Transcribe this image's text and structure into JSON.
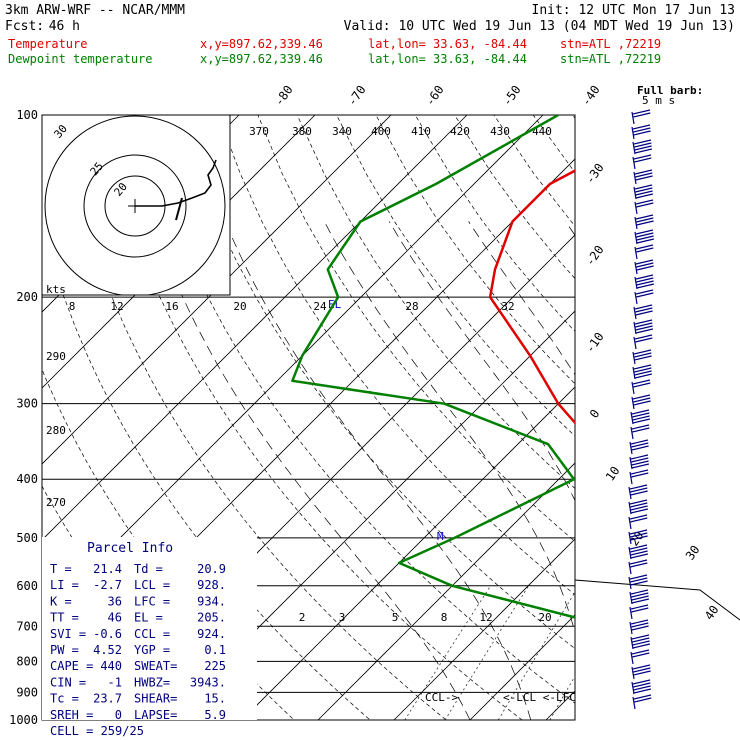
{
  "header": {
    "model": "3km ARW-WRF -- NCAR/MMM",
    "init": "Init: 12 UTC Mon 17 Jun 13",
    "fcst_label": "Fcst:",
    "fcst_value": "46 h",
    "valid": "Valid: 10 UTC Wed 19 Jun 13 (04 MDT Wed 19 Jun 13)",
    "temp_label": "Temperature",
    "dew_label": "Dewpoint temperature",
    "xy": "x,y=897.62,339.46",
    "latlon": "lat,lon= 33.63, -84.44",
    "stn": "stn=ATL ,72219"
  },
  "colors": {
    "temperature": "#e00000",
    "dewpoint": "#008000",
    "wind": "#000080",
    "text": "#000000",
    "grid": "#000000",
    "mixing": "#555555",
    "el_marker": "#0000cc"
  },
  "chart_data": {
    "type": "line",
    "title": "Skew-T log-P sounding",
    "y_axis": "pressure",
    "pressure_ticks": [
      "100",
      "200",
      "300",
      "400",
      "500",
      "600",
      "700",
      "800",
      "900",
      "1000"
    ],
    "isotherm_labels": [
      "-80",
      "-70",
      "-60",
      "-50",
      "-40",
      "-30",
      "-20",
      "-10",
      "0",
      "10",
      "20",
      "30",
      "40"
    ],
    "theta_e_labels": [
      "370",
      "380",
      "340",
      "400",
      "410",
      "420",
      "430",
      "440"
    ],
    "side_theta_labels": [
      "290",
      "280",
      "270"
    ],
    "mixing_ratio_labels": [
      "2",
      "3",
      "5",
      "8",
      "12",
      "20"
    ],
    "hodograph": {
      "ring_labels": [
        "8",
        "12",
        "16",
        "20",
        "24",
        "28",
        "32"
      ],
      "unit": "kts",
      "circle_labels": [
        "20",
        "25",
        "30"
      ]
    },
    "el_label": "EL",
    "barb_label": "Full barb:",
    "barb_unit": "5 m s",
    "ccl_label": "CCL->",
    "lcl_lfc_label": "<-LCL <-LFC",
    "series": [
      {
        "name": "Temperature",
        "points": [
          [
            100,
            -52
          ],
          [
            130,
            -60
          ],
          [
            150,
            -60
          ],
          [
            180,
            -56
          ],
          [
            200,
            -53
          ],
          [
            250,
            -40
          ],
          [
            300,
            -30
          ],
          [
            350,
            -20
          ],
          [
            400,
            -11
          ],
          [
            500,
            -4
          ],
          [
            600,
            5
          ],
          [
            700,
            10
          ],
          [
            780,
            15
          ],
          [
            850,
            18
          ],
          [
            900,
            20
          ],
          [
            950,
            21.4
          ]
        ]
      },
      {
        "name": "Dewpoint temperature",
        "points": [
          [
            100,
            -68
          ],
          [
            130,
            -75
          ],
          [
            150,
            -80
          ],
          [
            180,
            -78
          ],
          [
            200,
            -73
          ],
          [
            250,
            -70
          ],
          [
            275,
            -68
          ],
          [
            300,
            -45
          ],
          [
            350,
            -26
          ],
          [
            400,
            -18
          ],
          [
            500,
            -26
          ],
          [
            550,
            -30
          ],
          [
            600,
            -20
          ],
          [
            700,
            6
          ],
          [
            800,
            11
          ],
          [
            880,
            17
          ],
          [
            950,
            20.9
          ]
        ]
      }
    ]
  },
  "parcel": {
    "title": "Parcel Info",
    "rows": [
      [
        "T   =",
        "21.4",
        "Td  =",
        "20.9"
      ],
      [
        "LI  =",
        "-2.7",
        "LCL =",
        "928."
      ],
      [
        "K   =",
        "36",
        "LFC =",
        "934."
      ],
      [
        "TT  =",
        "46",
        "EL  =",
        "205."
      ],
      [
        "SVI =",
        "-0.6",
        "CCL =",
        "924."
      ],
      [
        "PW  =",
        "4.52",
        "YGP =",
        "0.1"
      ],
      [
        "CAPE =",
        "440",
        "SWEAT=",
        "225"
      ],
      [
        "CIN  =",
        "-1",
        "HWBZ=",
        "3943."
      ],
      [
        "Tc  =",
        "23.7",
        "SHEAR=",
        "15."
      ],
      [
        "SREH =",
        "0",
        "LAPSE=",
        "5.9"
      ]
    ],
    "cell": "CELL = 259/25"
  }
}
